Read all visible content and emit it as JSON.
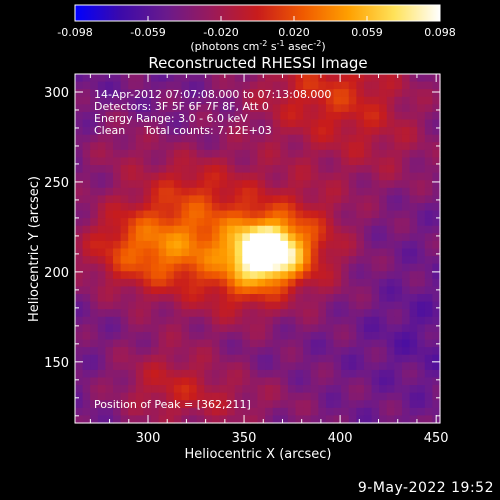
{
  "chart_data": {
    "type": "heatmap",
    "title": "Reconstructed RHESSI Image",
    "xlabel": "Heliocentric X (arcsec)",
    "ylabel": "Heliocentric Y (arcsec)",
    "xlim": [
      262,
      452
    ],
    "ylim": [
      116,
      310
    ],
    "x_ticks": [
      300,
      350,
      400,
      450
    ],
    "y_ticks": [
      150,
      200,
      250,
      300
    ],
    "colorbar": {
      "range": [
        -0.098,
        0.098
      ],
      "ticks": [
        "-0.098",
        "-0.059",
        "-0.020",
        "0.020",
        "0.059",
        "0.098"
      ],
      "unit_parts": [
        "(photons cm",
        "-2",
        " s",
        "-1",
        " asec",
        "-2",
        ")"
      ]
    },
    "info_lines": [
      "14-Apr-2012 07:07:08.000 to 07:13:08.000",
      "Detectors: 3F 5F 6F 7F 8F, Att 0",
      "Energy Range: 3.0 - 6.0 keV"
    ],
    "clean_label": "Clean",
    "total_counts": "Total counts: 7.12E+03",
    "peak_label": "Position of Peak = [362,211]",
    "peak": {
      "x": 362,
      "y": 211,
      "value": 0.098
    },
    "sources": [
      {
        "x": 362,
        "y": 211,
        "sx": 12,
        "sy": 11,
        "amp": 0.14
      },
      {
        "x": 333,
        "y": 222,
        "sx": 35,
        "sy": 28,
        "amp": 0.058
      },
      {
        "x": 298,
        "y": 212,
        "sx": 24,
        "sy": 16,
        "amp": 0.045
      },
      {
        "x": 395,
        "y": 300,
        "sx": 30,
        "sy": 22,
        "amp": 0.05
      },
      {
        "x": 350,
        "y": 190,
        "sx": 14,
        "sy": 14,
        "amp": 0.025
      },
      {
        "x": 385,
        "y": 215,
        "sx": 16,
        "sy": 22,
        "amp": 0.03
      },
      {
        "x": 425,
        "y": 265,
        "sx": 22,
        "sy": 18,
        "amp": 0.018
      },
      {
        "x": 285,
        "y": 270,
        "sx": 14,
        "sy": 12,
        "amp": 0.015
      },
      {
        "x": 310,
        "y": 140,
        "sx": 20,
        "sy": 16,
        "amp": 0.03
      },
      {
        "x": 340,
        "y": 128,
        "sx": 30,
        "sy": 12,
        "amp": 0.022
      },
      {
        "x": 440,
        "y": 165,
        "sx": 16,
        "sy": 18,
        "amp": -0.01
      },
      {
        "x": 320,
        "y": 250,
        "sx": 14,
        "sy": 10,
        "amp": 0.012
      }
    ],
    "background_level": -0.045,
    "colormap_stops": [
      "#0000ff",
      "#3c0aaa",
      "#6a1a8c",
      "#9a1a5a",
      "#c81c1c",
      "#f05a00",
      "#ffa000",
      "#ffe25a",
      "#ffffff"
    ]
  },
  "footer": {
    "date": "9-May-2022 19:52"
  }
}
